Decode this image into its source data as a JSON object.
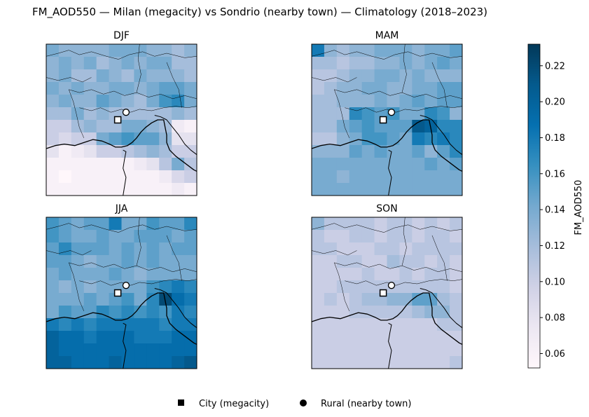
{
  "chart_data": {
    "type": "heatmap",
    "title": "FM_AOD550 — Milan (megacity) vs Sondrio (nearby town) — Climatology (2018–2023)",
    "colorbar": {
      "label": "FM_AOD550",
      "range": [
        0.052,
        0.232
      ],
      "ticks": [
        "0.06",
        "0.08",
        "0.10",
        "0.12",
        "0.14",
        "0.16",
        "0.18",
        "0.20",
        "0.22"
      ],
      "tick_values": [
        0.06,
        0.08,
        0.1,
        0.12,
        0.14,
        0.16,
        0.18,
        0.2,
        0.22
      ],
      "colormap": "PuBu",
      "colors": [
        "#fff7fb",
        "#ece7f2",
        "#d0d1e6",
        "#a6bddb",
        "#74a9cf",
        "#3690c0",
        "#0570b0",
        "#045a8d",
        "#023858"
      ]
    },
    "legend": {
      "placement": "bottom-center",
      "items": [
        {
          "label": "City (megacity)",
          "marker": "square"
        },
        {
          "label": "Rural (nearby town)",
          "marker": "circle"
        }
      ]
    },
    "grid": {
      "rows": 12,
      "cols": 12
    },
    "panels": [
      {
        "name": "DJF",
        "values": [
          [
            0.14,
            0.13,
            0.13,
            0.13,
            0.13,
            0.14,
            0.14,
            0.14,
            0.13,
            0.13,
            0.12,
            0.13
          ],
          [
            0.13,
            0.14,
            0.13,
            0.14,
            0.12,
            0.13,
            0.14,
            0.13,
            0.14,
            0.14,
            0.12,
            0.12
          ],
          [
            0.13,
            0.14,
            0.12,
            0.12,
            0.14,
            0.13,
            0.12,
            0.14,
            0.13,
            0.13,
            0.13,
            0.12
          ],
          [
            0.14,
            0.13,
            0.14,
            0.13,
            0.13,
            0.14,
            0.14,
            0.13,
            0.14,
            0.15,
            0.15,
            0.14
          ],
          [
            0.13,
            0.14,
            0.13,
            0.13,
            0.15,
            0.14,
            0.13,
            0.12,
            0.14,
            0.16,
            0.17,
            0.14
          ],
          [
            0.12,
            0.12,
            0.14,
            0.12,
            0.13,
            0.12,
            0.12,
            0.12,
            0.12,
            0.12,
            0.13,
            0.12
          ],
          [
            0.1,
            0.1,
            0.12,
            0.13,
            0.12,
            0.12,
            0.14,
            0.14,
            0.13,
            0.12,
            0.07,
            0.06
          ],
          [
            0.1,
            0.09,
            0.1,
            0.1,
            0.14,
            0.15,
            0.16,
            0.15,
            0.15,
            0.13,
            0.08,
            0.08
          ],
          [
            0.08,
            0.06,
            0.07,
            0.08,
            0.1,
            0.1,
            0.11,
            0.12,
            0.13,
            0.12,
            0.1,
            0.1
          ],
          [
            0.06,
            0.06,
            0.06,
            0.06,
            0.06,
            0.06,
            0.06,
            0.07,
            0.08,
            0.11,
            0.14,
            0.11
          ],
          [
            0.06,
            0.05,
            0.06,
            0.06,
            0.06,
            0.06,
            0.06,
            0.06,
            0.06,
            0.07,
            0.09,
            0.1
          ],
          [
            0.06,
            0.06,
            0.06,
            0.06,
            0.06,
            0.06,
            0.06,
            0.06,
            0.06,
            0.06,
            0.07,
            0.06
          ]
        ]
      },
      {
        "name": "MAM",
        "values": [
          [
            0.18,
            0.13,
            0.12,
            0.13,
            0.13,
            0.14,
            0.14,
            0.14,
            0.13,
            0.14,
            0.14,
            0.15
          ],
          [
            0.12,
            0.12,
            0.11,
            0.12,
            0.12,
            0.13,
            0.13,
            0.14,
            0.13,
            0.14,
            0.15,
            0.14
          ],
          [
            0.11,
            0.11,
            0.12,
            0.13,
            0.13,
            0.14,
            0.14,
            0.13,
            0.14,
            0.13,
            0.13,
            0.13
          ],
          [
            0.11,
            0.12,
            0.13,
            0.13,
            0.14,
            0.14,
            0.13,
            0.13,
            0.14,
            0.14,
            0.15,
            0.15
          ],
          [
            0.12,
            0.12,
            0.13,
            0.13,
            0.13,
            0.14,
            0.13,
            0.14,
            0.15,
            0.14,
            0.15,
            0.15
          ],
          [
            0.12,
            0.12,
            0.12,
            0.17,
            0.16,
            0.15,
            0.16,
            0.14,
            0.14,
            0.17,
            0.16,
            0.13
          ],
          [
            0.12,
            0.12,
            0.14,
            0.15,
            0.16,
            0.15,
            0.15,
            0.15,
            0.21,
            0.2,
            0.17,
            0.17
          ],
          [
            0.11,
            0.11,
            0.13,
            0.14,
            0.16,
            0.16,
            0.15,
            0.14,
            0.18,
            0.17,
            0.18,
            0.17
          ],
          [
            0.13,
            0.13,
            0.13,
            0.15,
            0.14,
            0.15,
            0.14,
            0.14,
            0.15,
            0.13,
            0.15,
            0.17
          ],
          [
            0.14,
            0.14,
            0.14,
            0.14,
            0.14,
            0.14,
            0.14,
            0.14,
            0.14,
            0.15,
            0.14,
            0.15
          ],
          [
            0.14,
            0.14,
            0.13,
            0.14,
            0.14,
            0.14,
            0.14,
            0.14,
            0.14,
            0.14,
            0.14,
            0.14
          ],
          [
            0.14,
            0.14,
            0.14,
            0.14,
            0.14,
            0.14,
            0.14,
            0.14,
            0.14,
            0.14,
            0.14,
            0.14
          ]
        ]
      },
      {
        "name": "JJA",
        "values": [
          [
            0.16,
            0.15,
            0.14,
            0.15,
            0.15,
            0.18,
            0.14,
            0.14,
            0.16,
            0.15,
            0.15,
            0.17
          ],
          [
            0.16,
            0.15,
            0.14,
            0.14,
            0.15,
            0.14,
            0.14,
            0.15,
            0.15,
            0.15,
            0.14,
            0.15
          ],
          [
            0.15,
            0.17,
            0.15,
            0.15,
            0.15,
            0.14,
            0.15,
            0.14,
            0.15,
            0.14,
            0.15,
            0.15
          ],
          [
            0.15,
            0.15,
            0.14,
            0.13,
            0.14,
            0.14,
            0.15,
            0.14,
            0.15,
            0.14,
            0.14,
            0.14
          ],
          [
            0.14,
            0.15,
            0.14,
            0.14,
            0.14,
            0.15,
            0.14,
            0.13,
            0.14,
            0.14,
            0.14,
            0.14
          ],
          [
            0.14,
            0.13,
            0.14,
            0.13,
            0.14,
            0.14,
            0.14,
            0.14,
            0.16,
            0.17,
            0.18,
            0.17
          ],
          [
            0.14,
            0.14,
            0.14,
            0.15,
            0.14,
            0.15,
            0.16,
            0.14,
            0.17,
            0.22,
            0.19,
            0.18
          ],
          [
            0.14,
            0.16,
            0.15,
            0.15,
            0.17,
            0.16,
            0.17,
            0.16,
            0.17,
            0.16,
            0.18,
            0.17
          ],
          [
            0.18,
            0.17,
            0.18,
            0.17,
            0.18,
            0.18,
            0.18,
            0.18,
            0.18,
            0.17,
            0.18,
            0.18
          ],
          [
            0.2,
            0.19,
            0.19,
            0.18,
            0.19,
            0.19,
            0.19,
            0.18,
            0.18,
            0.18,
            0.19,
            0.19
          ],
          [
            0.2,
            0.19,
            0.19,
            0.19,
            0.19,
            0.19,
            0.19,
            0.19,
            0.19,
            0.19,
            0.19,
            0.19
          ],
          [
            0.2,
            0.2,
            0.19,
            0.19,
            0.19,
            0.2,
            0.19,
            0.19,
            0.19,
            0.19,
            0.2,
            0.21
          ]
        ]
      },
      {
        "name": "SON",
        "values": [
          [
            0.13,
            0.11,
            0.11,
            0.11,
            0.11,
            0.1,
            0.11,
            0.11,
            0.1,
            0.11,
            0.1,
            0.11
          ],
          [
            0.11,
            0.1,
            0.1,
            0.11,
            0.11,
            0.1,
            0.11,
            0.11,
            0.1,
            0.11,
            0.11,
            0.1
          ],
          [
            0.11,
            0.11,
            0.1,
            0.1,
            0.1,
            0.11,
            0.11,
            0.1,
            0.11,
            0.11,
            0.11,
            0.11
          ],
          [
            0.1,
            0.1,
            0.11,
            0.11,
            0.1,
            0.1,
            0.12,
            0.11,
            0.11,
            0.1,
            0.11,
            0.1
          ],
          [
            0.1,
            0.1,
            0.1,
            0.1,
            0.11,
            0.1,
            0.1,
            0.11,
            0.1,
            0.11,
            0.11,
            0.1
          ],
          [
            0.1,
            0.1,
            0.11,
            0.11,
            0.11,
            0.11,
            0.11,
            0.11,
            0.11,
            0.11,
            0.11,
            0.1
          ],
          [
            0.1,
            0.11,
            0.1,
            0.11,
            0.12,
            0.12,
            0.13,
            0.13,
            0.15,
            0.15,
            0.12,
            0.11
          ],
          [
            0.1,
            0.1,
            0.1,
            0.11,
            0.11,
            0.11,
            0.11,
            0.11,
            0.12,
            0.13,
            0.13,
            0.11
          ],
          [
            0.1,
            0.1,
            0.1,
            0.1,
            0.1,
            0.1,
            0.1,
            0.1,
            0.1,
            0.1,
            0.11,
            0.11
          ],
          [
            0.1,
            0.1,
            0.1,
            0.1,
            0.1,
            0.1,
            0.1,
            0.1,
            0.1,
            0.1,
            0.1,
            0.1
          ],
          [
            0.1,
            0.1,
            0.1,
            0.1,
            0.1,
            0.1,
            0.1,
            0.1,
            0.1,
            0.1,
            0.1,
            0.1
          ],
          [
            0.1,
            0.1,
            0.1,
            0.1,
            0.1,
            0.1,
            0.1,
            0.1,
            0.1,
            0.1,
            0.1,
            0.11
          ]
        ]
      }
    ]
  }
}
